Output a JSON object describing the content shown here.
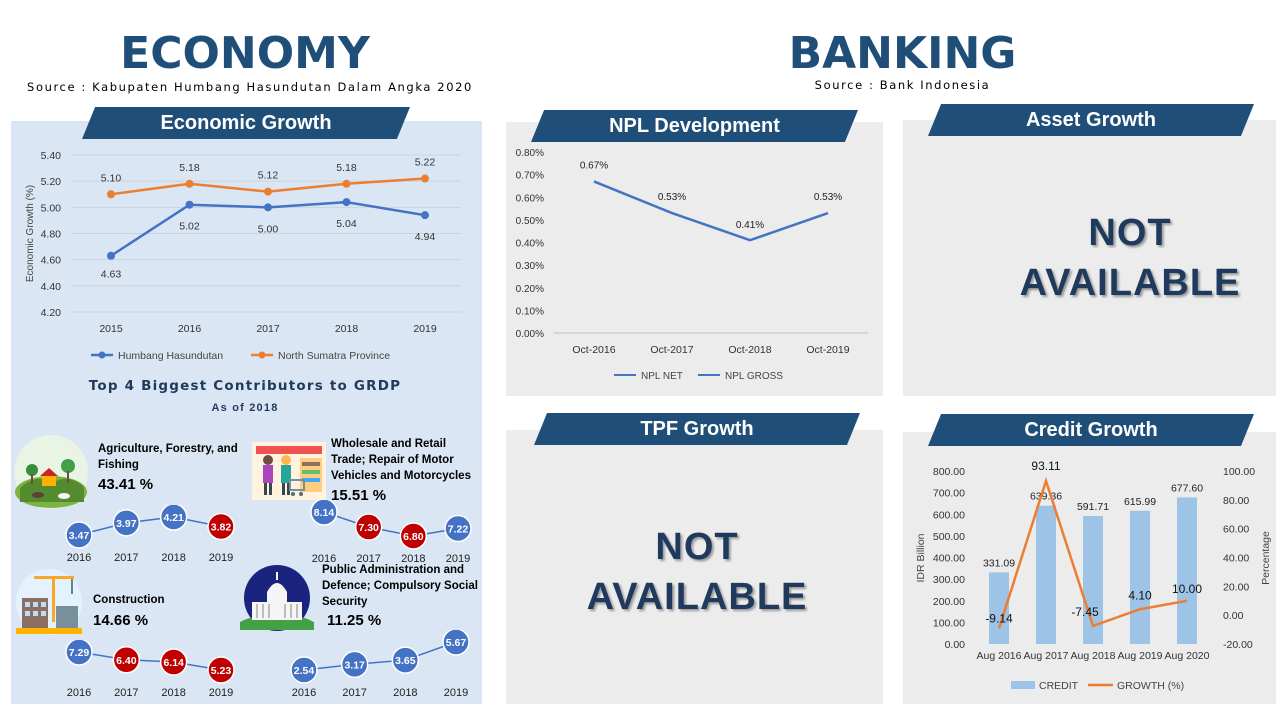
{
  "economy": {
    "title": "ECONOMY",
    "source": "Source : Kabupaten Humbang Hasundutan Dalam Angka 2020",
    "growth_banner": "Economic Growth",
    "contributors_title": "Top 4 Biggest Contributors to GRDP",
    "contributors_subtitle": "As of 2018",
    "sectors": [
      {
        "name": "Agriculture, Forestry, and Fishing",
        "share": "43.41 %",
        "years": [
          "2016",
          "2017",
          "2018",
          "2019"
        ],
        "values": [
          3.47,
          3.97,
          4.21,
          3.82
        ],
        "value_labels": [
          "3.47",
          "3.97",
          "4.21",
          "3.82"
        ],
        "colors": [
          "#4472c4",
          "#4472c4",
          "#4472c4",
          "#c00000"
        ],
        "icon": "farm-icon"
      },
      {
        "name": "Wholesale and Retail Trade; Repair of Motor Vehicles and Motorcycles",
        "share": "15.51 %",
        "years": [
          "2016",
          "2017",
          "2018",
          "2019"
        ],
        "values": [
          8.14,
          7.3,
          6.8,
          7.22
        ],
        "value_labels": [
          "8.14",
          "7.30",
          "6.80",
          "7.22"
        ],
        "colors": [
          "#4472c4",
          "#c00000",
          "#c00000",
          "#4472c4"
        ],
        "icon": "shopping-icon"
      },
      {
        "name": "Construction",
        "share": "14.66 %",
        "years": [
          "2016",
          "2017",
          "2018",
          "2019"
        ],
        "values": [
          7.29,
          6.4,
          6.14,
          5.23
        ],
        "value_labels": [
          "7.29",
          "6.40",
          "6.14",
          "5.23"
        ],
        "colors": [
          "#4472c4",
          "#c00000",
          "#c00000",
          "#c00000"
        ],
        "icon": "construction-icon"
      },
      {
        "name": "Public Administration and Defence; Compulsory Social Security",
        "share": "11.25 %",
        "years": [
          "2016",
          "2017",
          "2018",
          "2019"
        ],
        "values": [
          2.54,
          3.17,
          3.65,
          5.67
        ],
        "value_labels": [
          "2.54",
          "3.17",
          "3.65",
          "5.67"
        ],
        "colors": [
          "#4472c4",
          "#4472c4",
          "#4472c4",
          "#4472c4"
        ],
        "icon": "capitol-icon"
      }
    ]
  },
  "banking": {
    "title": "BANKING",
    "source": "Source : Bank Indonesia",
    "npl_banner": "NPL Development",
    "asset_banner": "Asset Growth",
    "tpf_banner": "TPF Growth",
    "credit_banner": "Credit Growth",
    "not_available_line1": "NOT",
    "not_available_line2": "AVAILABLE"
  },
  "chart_data": [
    {
      "id": "economic-growth",
      "type": "line",
      "x": [
        "2015",
        "2016",
        "2017",
        "2018",
        "2019"
      ],
      "ylabel": "Economic Growth (%)",
      "ylim": [
        4.2,
        5.4
      ],
      "yticks": [
        "4.20",
        "4.40",
        "4.60",
        "4.80",
        "5.00",
        "5.20",
        "5.40"
      ],
      "grid": true,
      "legend": "bottom",
      "series": [
        {
          "name": "Humbang Hasundutan",
          "values": [
            4.63,
            5.02,
            5.0,
            5.04,
            4.94
          ],
          "labels": [
            "4.63",
            "5.02",
            "5.00",
            "5.04",
            "4.94"
          ],
          "color": "#4472c4"
        },
        {
          "name": "North Sumatra Province",
          "values": [
            5.1,
            5.18,
            5.12,
            5.18,
            5.22
          ],
          "labels": [
            "5.10",
            "5.18",
            "5.12",
            "5.18",
            "5.22"
          ],
          "color": "#ed7d31"
        }
      ]
    },
    {
      "id": "npl-development",
      "type": "line",
      "x": [
        "Oct-2016",
        "Oct-2017",
        "Oct-2018",
        "Oct-2019"
      ],
      "ylim": [
        0,
        0.8
      ],
      "yticks": [
        "0.00%",
        "0.10%",
        "0.20%",
        "0.30%",
        "0.40%",
        "0.50%",
        "0.60%",
        "0.70%",
        "0.80%"
      ],
      "legend": "bottom",
      "series": [
        {
          "name": "NPL NET",
          "values": [
            null,
            null,
            null,
            null
          ],
          "color": "#4472c4"
        },
        {
          "name": "NPL GROSS",
          "values": [
            0.67,
            0.53,
            0.41,
            0.53
          ],
          "labels": [
            "0.67%",
            "0.53%",
            "0.41%",
            "0.53%"
          ],
          "color": "#4472c4"
        }
      ]
    },
    {
      "id": "credit-growth",
      "type": "bar",
      "categories": [
        "Aug 2016",
        "Aug 2017",
        "Aug 2018",
        "Aug 2019",
        "Aug 2020"
      ],
      "ylabel": "IDR Billion",
      "y2label": "Percentage",
      "ylim": [
        0,
        800
      ],
      "y2lim": [
        -20,
        100
      ],
      "yticks": [
        "0.00",
        "100.00",
        "200.00",
        "300.00",
        "400.00",
        "500.00",
        "600.00",
        "700.00",
        "800.00"
      ],
      "y2ticks": [
        "-20.00",
        "0.00",
        "20.00",
        "40.00",
        "60.00",
        "80.00",
        "100.00"
      ],
      "legend": "bottom",
      "series": [
        {
          "name": "CREDIT",
          "type": "bar",
          "values": [
            331.09,
            639.36,
            591.71,
            615.99,
            677.6
          ],
          "labels": [
            "331.09",
            "639.36",
            "591.71",
            "615.99",
            "677.60"
          ],
          "color": "#9dc3e6"
        },
        {
          "name": "GROWTH (%)",
          "type": "line",
          "axis": "right",
          "values": [
            -9.14,
            93.11,
            -7.45,
            4.1,
            10.0
          ],
          "labels": [
            "-9.14",
            "93.11",
            "-7.45",
            "4.10",
            "10.00"
          ],
          "color": "#ed7d31"
        }
      ]
    }
  ]
}
